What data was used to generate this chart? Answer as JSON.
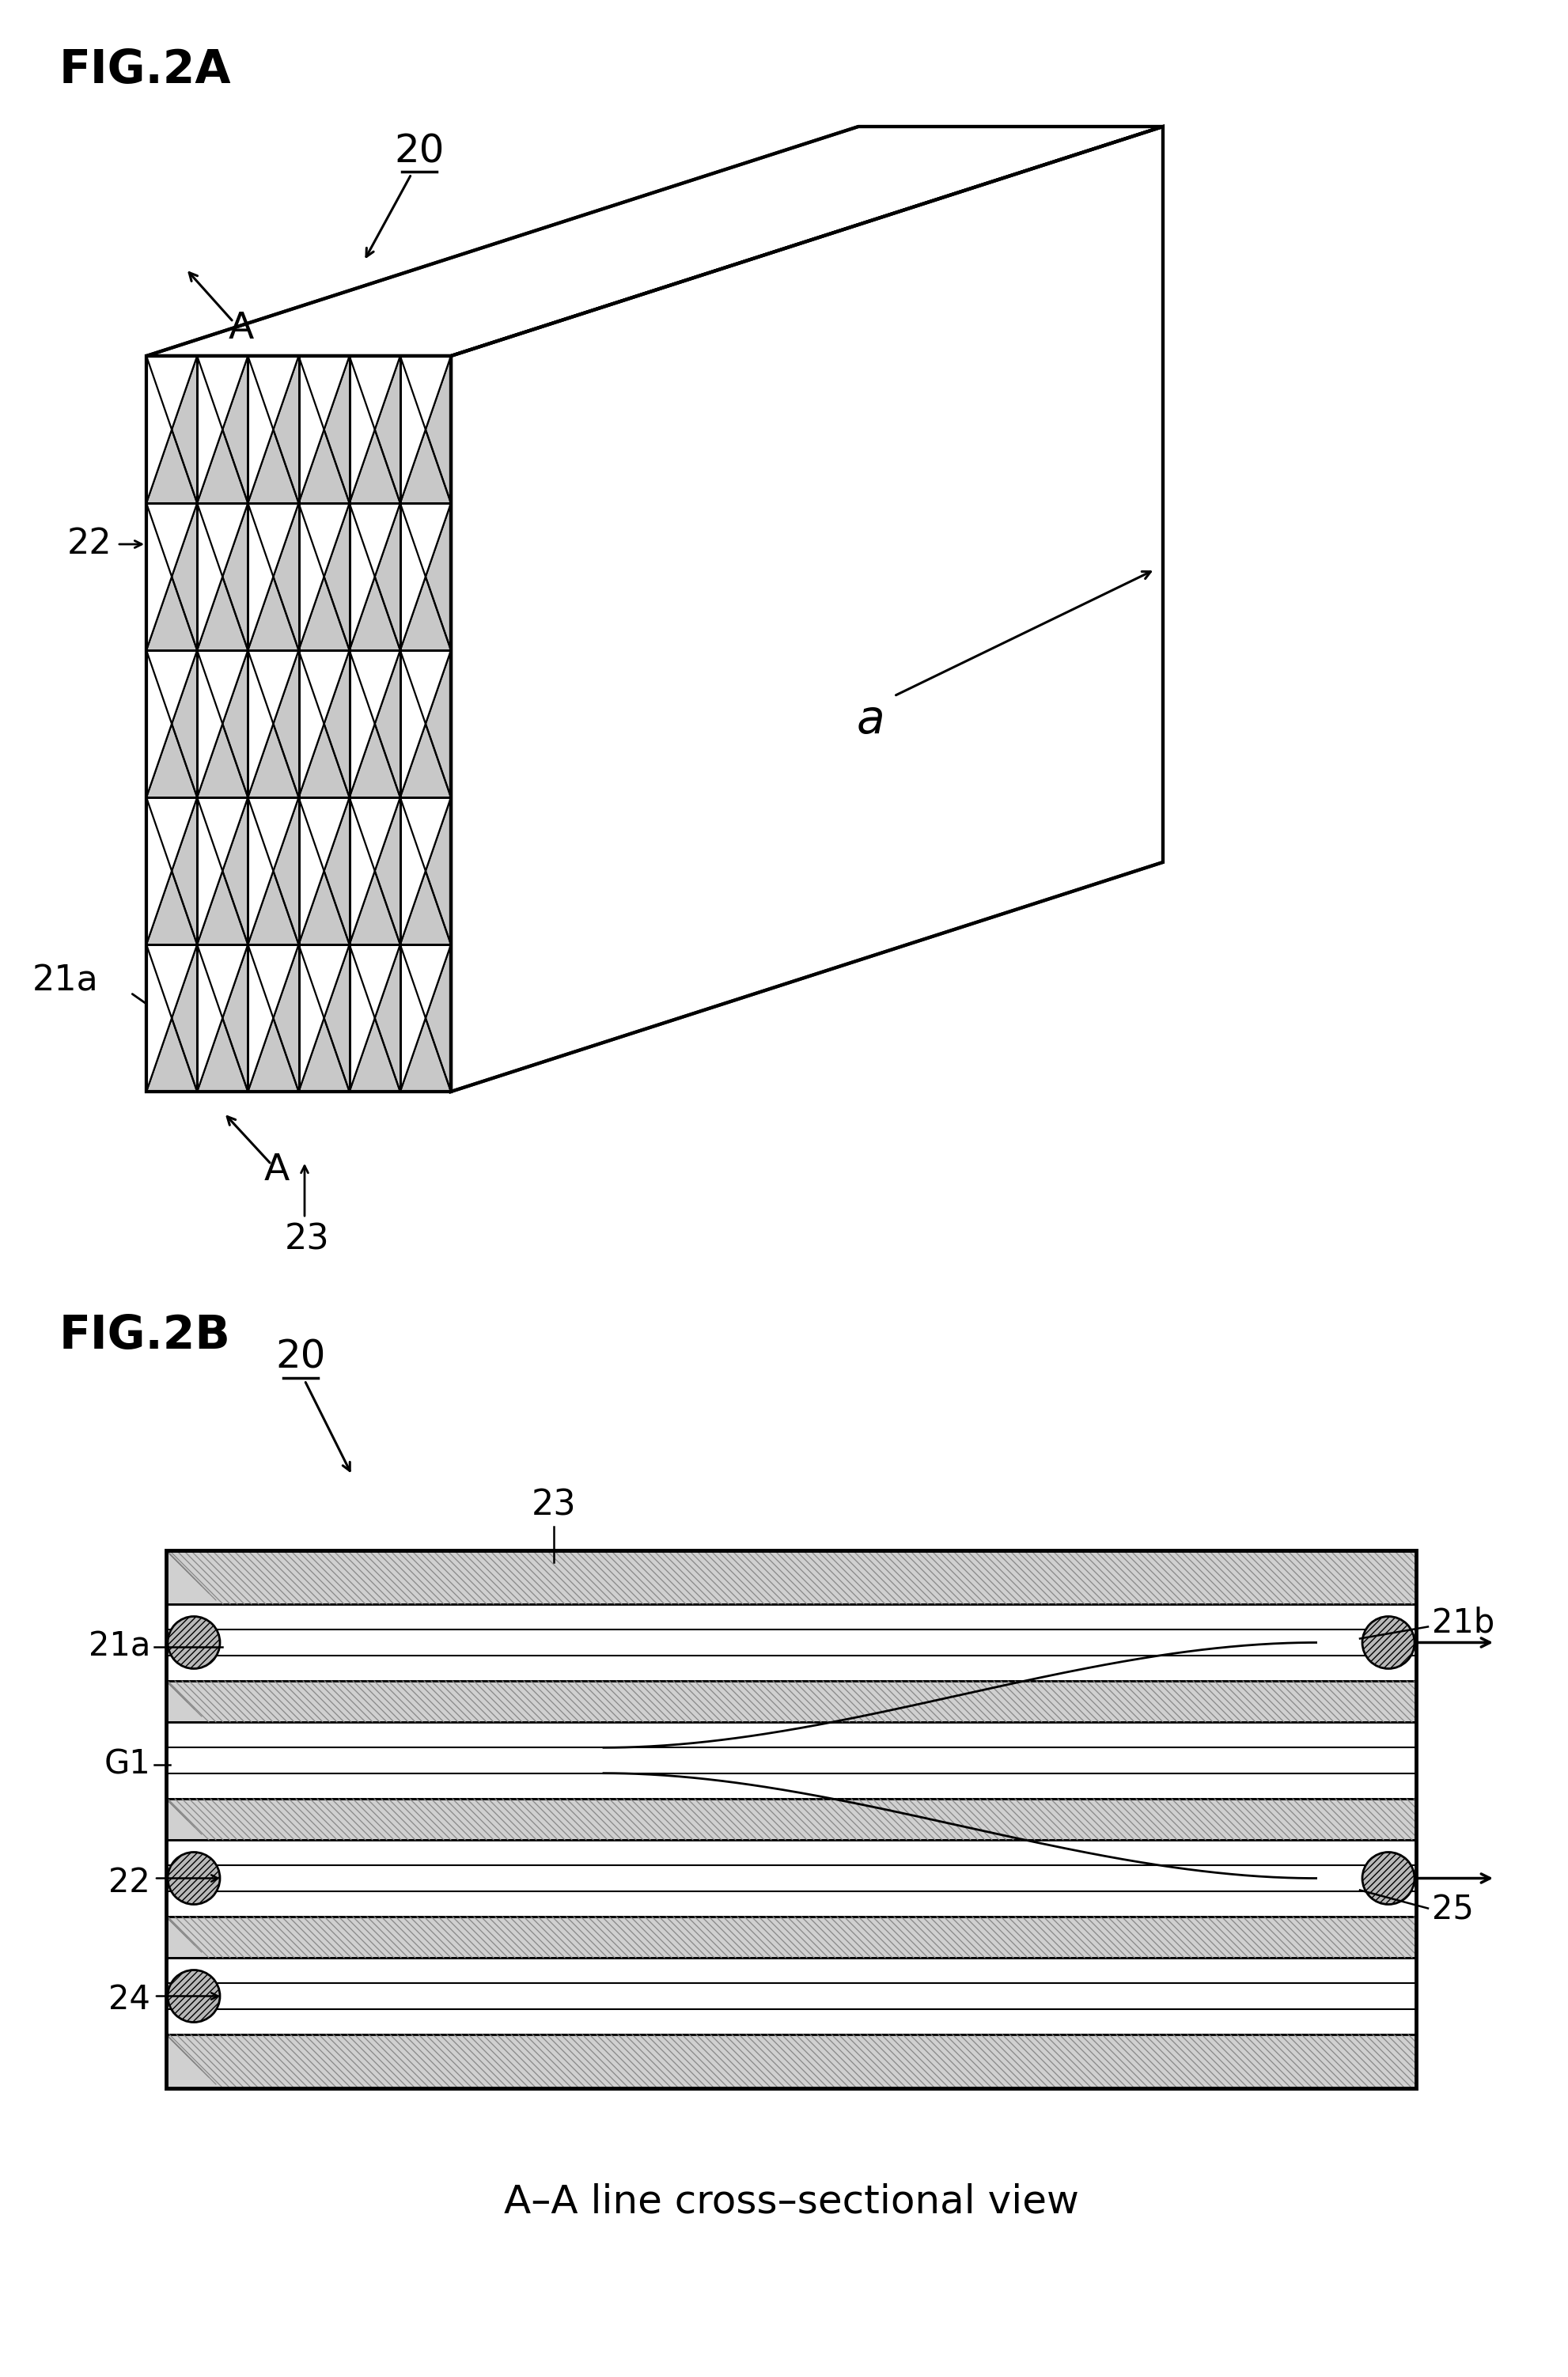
{
  "bg_color": "#ffffff",
  "fig_width": 19.83,
  "fig_height": 30.05,
  "fig2a_label": "FIG.2A",
  "fig2b_label": "FIG.2B",
  "label_20_a": "20",
  "label_22": "22",
  "label_21a": "21a",
  "label_23_a": "23",
  "label_a": "a",
  "label_A": "A",
  "label_20_b": "20",
  "label_23_b": "23",
  "label_21a_b": "21a",
  "label_21b": "21b",
  "label_G1": "G1",
  "label_22_b": "22",
  "label_24": "24",
  "label_25": "25",
  "caption": "A–A line cross–sectional view",
  "line_color": "#000000",
  "wall_hatch_color": "#888888",
  "wall_face_color": "#d8d8d8",
  "cell_gray": "#c8c8c8",
  "plug_face_color": "#b0b0b0"
}
